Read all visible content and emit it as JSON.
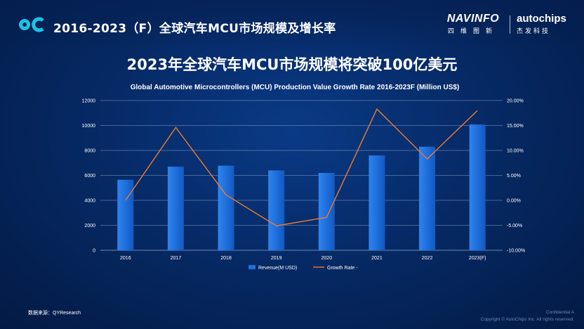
{
  "header": {
    "title": "2016-2023（F）全球汽车MCU市场规模及增长率",
    "brand_left": "NAVINFO",
    "brand_left_sub": "四维图新",
    "brand_right": "autochips",
    "brand_right_sub": "杰发科技"
  },
  "headline": "2023年全球汽车MCU市场规模将突破100亿美元",
  "chart_data": {
    "type": "bar",
    "title": "Global Automotive Microcontrollers (MCU) Production Value Growth Rate 2016-2023F  (Million US$)",
    "categories": [
      "2016",
      "2017",
      "2018",
      "2019",
      "2020",
      "2021",
      "2022",
      "2023(F)"
    ],
    "series": [
      {
        "name": "Revenue(M USD)",
        "type": "bar",
        "axis": "left",
        "values": [
          5650,
          6700,
          6780,
          6400,
          6200,
          7600,
          8300,
          10080
        ]
      },
      {
        "name": "Growth Rate -",
        "type": "line",
        "axis": "right",
        "values": [
          0.0,
          14.6,
          1.1,
          -5.1,
          -3.4,
          18.3,
          8.3,
          18.0
        ]
      }
    ],
    "y_left": {
      "ylim": [
        0,
        12000
      ],
      "ticks": [
        "0",
        "2000",
        "4000",
        "6000",
        "8000",
        "10000",
        "12000"
      ]
    },
    "y_right": {
      "ylim": [
        -10,
        20
      ],
      "ticks": [
        "-10.00%",
        "-5.00%",
        "0.00%",
        "5.00%",
        "10.00%",
        "15.00%",
        "20.00%"
      ]
    },
    "grid": true,
    "legend_position": "bottom",
    "colors": {
      "bar": "#1f6fdc",
      "line": "#f07a2a"
    }
  },
  "footer": {
    "source": "数据来源：QYResearch",
    "confidential": "Confidential A",
    "copyright": "Copyright © AutoChips Inc.   All rights reserved."
  }
}
